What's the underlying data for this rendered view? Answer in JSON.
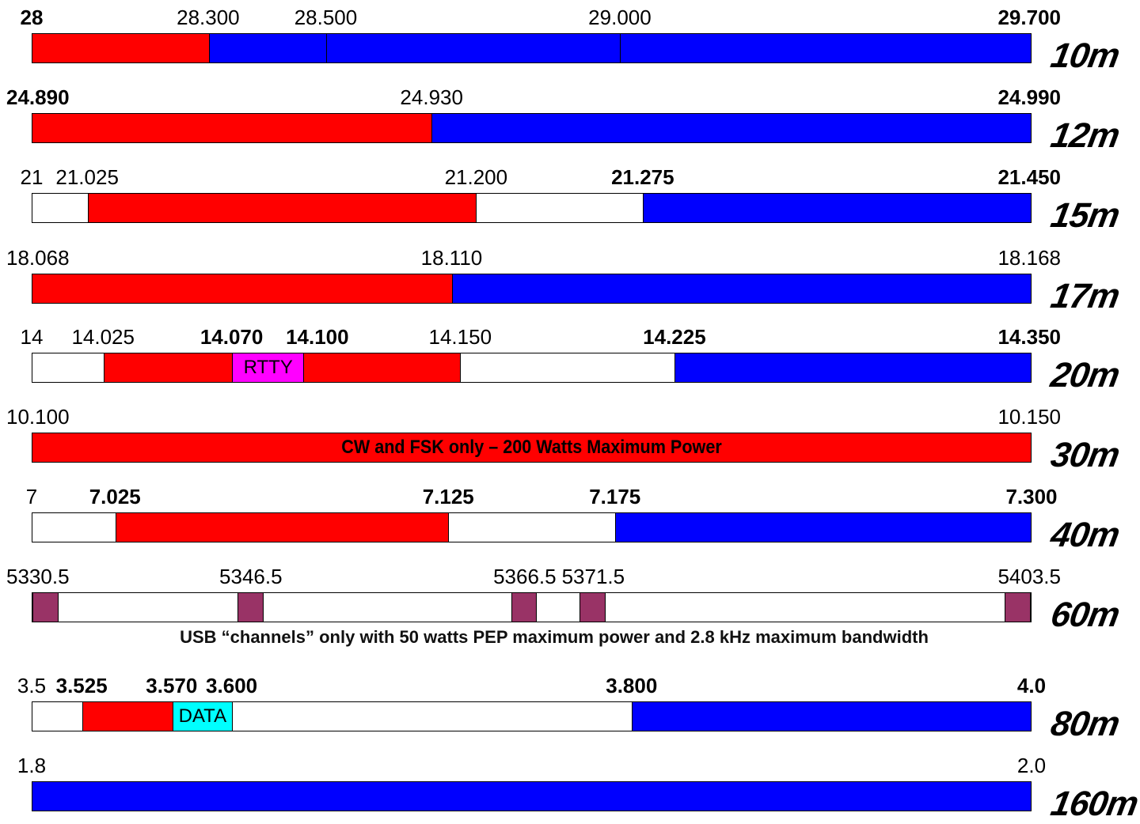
{
  "colors": {
    "cw_data": "#ff0000",
    "phone_image": "#0000ff",
    "rtty": "#ff00ff",
    "data": "#00ffff",
    "channel": "#993366",
    "unused": "#ffffff"
  },
  "chart_data": {
    "type": "band-plan",
    "bands": [
      {
        "name": "10m",
        "labels": [
          {
            "text": "28",
            "bold": true,
            "x": 28
          },
          {
            "text": "28.300",
            "bold": false,
            "x": 28.3
          },
          {
            "text": "28.500",
            "bold": false,
            "x": 28.5
          },
          {
            "text": "29.000",
            "bold": false,
            "x": 29.0
          },
          {
            "text": "29.700",
            "bold": true,
            "x": 29.7
          }
        ],
        "segments": [
          {
            "start": 28,
            "end": 28.3,
            "color": "cw_data"
          },
          {
            "start": 28.3,
            "end": 28.5,
            "color": "phone_image"
          },
          {
            "start": 28.5,
            "end": 29.0,
            "color": "phone_image"
          },
          {
            "start": 29.0,
            "end": 29.7,
            "color": "phone_image"
          }
        ]
      },
      {
        "name": "12m",
        "labels": [
          {
            "text": "24.890",
            "bold": true,
            "x": 24.89
          },
          {
            "text": "24.930",
            "bold": false,
            "x": 24.93
          },
          {
            "text": "24.990",
            "bold": true,
            "x": 24.99
          }
        ],
        "segments": [
          {
            "start": 24.89,
            "end": 24.93,
            "color": "cw_data"
          },
          {
            "start": 24.93,
            "end": 24.99,
            "color": "phone_image"
          }
        ]
      },
      {
        "name": "15m",
        "labels": [
          {
            "text": "21",
            "bold": false,
            "x": 21.0
          },
          {
            "text": "21.025",
            "bold": false,
            "x": 21.025
          },
          {
            "text": "21.200",
            "bold": false,
            "x": 21.2
          },
          {
            "text": "21.275",
            "bold": true,
            "x": 21.275
          },
          {
            "text": "21.450",
            "bold": true,
            "x": 21.45
          }
        ],
        "segments": [
          {
            "start": 21.0,
            "end": 21.025,
            "color": "unused"
          },
          {
            "start": 21.025,
            "end": 21.2,
            "color": "cw_data"
          },
          {
            "start": 21.2,
            "end": 21.275,
            "color": "unused"
          },
          {
            "start": 21.275,
            "end": 21.45,
            "color": "phone_image"
          }
        ]
      },
      {
        "name": "17m",
        "labels": [
          {
            "text": "18.068",
            "bold": false,
            "x": 18.068
          },
          {
            "text": "18.110",
            "bold": false,
            "x": 18.11
          },
          {
            "text": "18.168",
            "bold": false,
            "x": 18.168
          }
        ],
        "segments": [
          {
            "start": 18.068,
            "end": 18.11,
            "color": "cw_data"
          },
          {
            "start": 18.11,
            "end": 18.168,
            "color": "phone_image"
          }
        ]
      },
      {
        "name": "20m",
        "labels": [
          {
            "text": "14",
            "bold": false,
            "x": 14.0
          },
          {
            "text": "14.025",
            "bold": false,
            "x": 14.025
          },
          {
            "text": "14.070",
            "bold": true,
            "x": 14.07
          },
          {
            "text": "14.100",
            "bold": true,
            "x": 14.1
          },
          {
            "text": "14.150",
            "bold": false,
            "x": 14.15
          },
          {
            "text": "14.225",
            "bold": true,
            "x": 14.225
          },
          {
            "text": "14.350",
            "bold": true,
            "x": 14.35
          }
        ],
        "segments": [
          {
            "start": 14.0,
            "end": 14.025,
            "color": "unused"
          },
          {
            "start": 14.025,
            "end": 14.07,
            "color": "cw_data"
          },
          {
            "start": 14.07,
            "end": 14.095,
            "color": "rtty",
            "label": "RTTY"
          },
          {
            "start": 14.095,
            "end": 14.15,
            "color": "cw_data"
          },
          {
            "start": 14.15,
            "end": 14.225,
            "color": "unused"
          },
          {
            "start": 14.225,
            "end": 14.35,
            "color": "phone_image"
          }
        ]
      },
      {
        "name": "30m",
        "labels": [
          {
            "text": "10.100",
            "bold": false,
            "x": 10.1
          },
          {
            "text": "10.150",
            "bold": false,
            "x": 10.15
          }
        ],
        "segments": [
          {
            "start": 10.1,
            "end": 10.15,
            "color": "cw_data",
            "label": "CW and FSK only – 200 Watts Maximum Power"
          }
        ]
      },
      {
        "name": "40m",
        "labels": [
          {
            "text": "7",
            "bold": false,
            "x": 7.0
          },
          {
            "text": "7.025",
            "bold": true,
            "x": 7.025
          },
          {
            "text": "7.125",
            "bold": true,
            "x": 7.125
          },
          {
            "text": "7.175",
            "bold": true,
            "x": 7.175
          },
          {
            "text": "7.300",
            "bold": true,
            "x": 7.3
          }
        ],
        "segments": [
          {
            "start": 7.0,
            "end": 7.025,
            "color": "unused"
          },
          {
            "start": 7.025,
            "end": 7.125,
            "color": "cw_data"
          },
          {
            "start": 7.125,
            "end": 7.175,
            "color": "unused"
          },
          {
            "start": 7.175,
            "end": 7.3,
            "color": "phone_image"
          }
        ]
      },
      {
        "name": "60m",
        "labels": [
          {
            "text": "5330.5",
            "bold": false,
            "x": 5330.5
          },
          {
            "text": "5346.5",
            "bold": false,
            "x": 5346.5
          },
          {
            "text": "5366.5",
            "bold": false,
            "x": 5366.5
          },
          {
            "text": "5371.5",
            "bold": false,
            "x": 5371.5
          },
          {
            "text": "5403.5",
            "bold": false,
            "x": 5403.5
          }
        ],
        "segments": [
          {
            "start": 5330.5,
            "end": 5332.4,
            "color": "channel"
          },
          {
            "start": 5345.5,
            "end": 5347.4,
            "color": "channel"
          },
          {
            "start": 5365.5,
            "end": 5367.4,
            "color": "channel"
          },
          {
            "start": 5370.5,
            "end": 5372.4,
            "color": "channel"
          },
          {
            "start": 5401.6,
            "end": 5403.5,
            "color": "channel"
          }
        ],
        "note": "USB “channels” only with 50 watts PEP maximum power and 2.8 kHz maximum bandwidth"
      },
      {
        "name": "80m",
        "labels": [
          {
            "text": "3.5",
            "bold": false,
            "x": 3.5
          },
          {
            "text": "3.525",
            "bold": true,
            "x": 3.525
          },
          {
            "text": "3.570",
            "bold": true,
            "x": 3.57
          },
          {
            "text": "3.600",
            "bold": true,
            "x": 3.6
          },
          {
            "text": "3.800",
            "bold": true,
            "x": 3.8
          },
          {
            "text": "4.0",
            "bold": true,
            "x": 4.0
          }
        ],
        "segments": [
          {
            "start": 3.5,
            "end": 3.525,
            "color": "unused"
          },
          {
            "start": 3.525,
            "end": 3.57,
            "color": "cw_data"
          },
          {
            "start": 3.57,
            "end": 3.6,
            "color": "data",
            "label": "DATA"
          },
          {
            "start": 3.6,
            "end": 3.8,
            "color": "unused"
          },
          {
            "start": 3.8,
            "end": 4.0,
            "color": "phone_image"
          }
        ]
      },
      {
        "name": "160m",
        "labels": [
          {
            "text": "1.8",
            "bold": false,
            "x": 1.8
          },
          {
            "text": "2.0",
            "bold": false,
            "x": 2.0
          }
        ],
        "segments": [
          {
            "start": 1.8,
            "end": 2.0,
            "color": "phone_image"
          }
        ]
      }
    ]
  }
}
